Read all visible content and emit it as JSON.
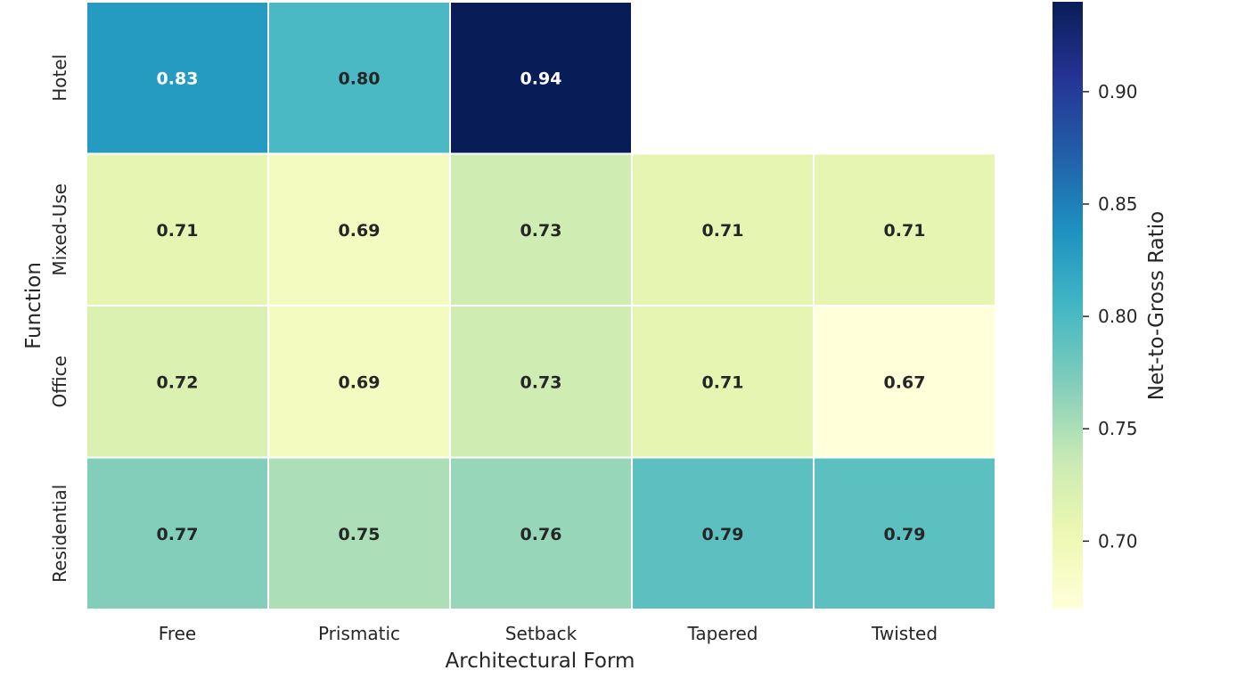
{
  "chart_data": {
    "type": "heatmap",
    "xlabel": "Architectural Form",
    "ylabel": "Function",
    "x_categories": [
      "Free",
      "Prismatic",
      "Setback",
      "Tapered",
      "Twisted"
    ],
    "y_categories": [
      "Hotel",
      "Mixed-Use",
      "Office",
      "Residential"
    ],
    "values": [
      [
        0.83,
        0.8,
        0.94,
        null,
        null
      ],
      [
        0.71,
        0.69,
        0.73,
        0.71,
        0.71
      ],
      [
        0.72,
        0.69,
        0.73,
        0.71,
        0.67
      ],
      [
        0.77,
        0.75,
        0.76,
        0.79,
        0.79
      ]
    ],
    "value_labels": [
      [
        "0.83",
        "0.80",
        "0.94",
        "",
        ""
      ],
      [
        "0.71",
        "0.69",
        "0.73",
        "0.71",
        "0.71"
      ],
      [
        "0.72",
        "0.69",
        "0.73",
        "0.71",
        "0.67"
      ],
      [
        "0.77",
        "0.75",
        "0.76",
        "0.79",
        "0.79"
      ]
    ],
    "colorbar": {
      "label": "Net-to-Gross Ratio",
      "colormap": "YlGnBu",
      "range": [
        0.67,
        0.94
      ],
      "ticks": [
        0.7,
        0.75,
        0.8,
        0.85,
        0.9
      ],
      "tick_labels": [
        "0.70",
        "0.75",
        "0.80",
        "0.85",
        "0.90"
      ]
    },
    "cell_border_color": "#ffffff",
    "dark_text_color": "#262626",
    "light_text_color": "#ffffff"
  }
}
